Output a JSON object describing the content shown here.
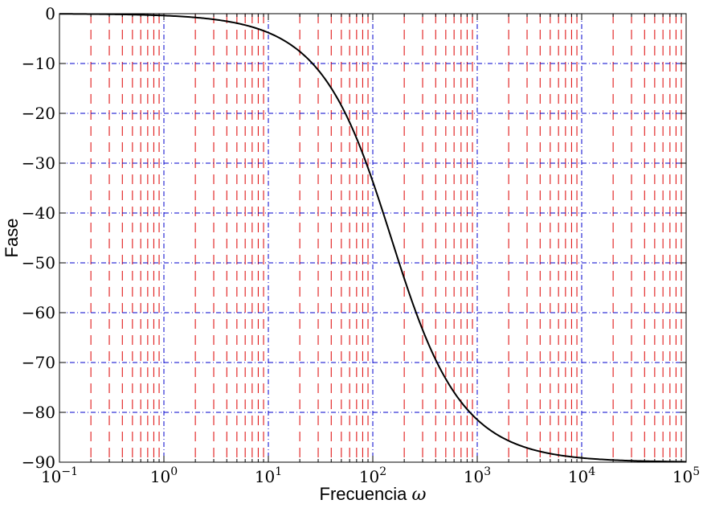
{
  "chart_data": {
    "type": "line",
    "title": "",
    "xlabel": "Frecuencia",
    "xlabel_symbol": "ω",
    "ylabel": "Fase",
    "xscale": "log",
    "xlim": [
      0.1,
      100000
    ],
    "ylim": [
      -90,
      0
    ],
    "x_ticks": [
      {
        "base": "10",
        "exp": "−1"
      },
      {
        "base": "10",
        "exp": "0"
      },
      {
        "base": "10",
        "exp": "1"
      },
      {
        "base": "10",
        "exp": "2"
      },
      {
        "base": "10",
        "exp": "3"
      },
      {
        "base": "10",
        "exp": "4"
      },
      {
        "base": "10",
        "exp": "5"
      }
    ],
    "y_ticks": [
      "0",
      "−10",
      "−20",
      "−30",
      "−40",
      "−50",
      "−60",
      "−70",
      "−80",
      "−90"
    ],
    "grid": {
      "major_x": {
        "style": "dash-dot",
        "color": "#0000cc"
      },
      "minor_x": {
        "style": "dashed",
        "color": "#dd0000"
      },
      "major_y": {
        "style": "dash-dot",
        "color": "#0000cc"
      }
    },
    "series": [
      {
        "color": "#000000",
        "model": "phase = -atan(omega / 150) in degrees",
        "points": [
          [
            0.1,
            -0.04
          ],
          [
            1,
            -0.38
          ],
          [
            10,
            -3.81
          ],
          [
            50,
            -18.4
          ],
          [
            100,
            -33.7
          ],
          [
            150,
            -45.0
          ],
          [
            200,
            -53.1
          ],
          [
            300,
            -63.4
          ],
          [
            500,
            -73.3
          ],
          [
            1000,
            -81.5
          ],
          [
            2000,
            -85.7
          ],
          [
            10000,
            -89.1
          ],
          [
            100000,
            -89.9
          ]
        ]
      }
    ]
  }
}
